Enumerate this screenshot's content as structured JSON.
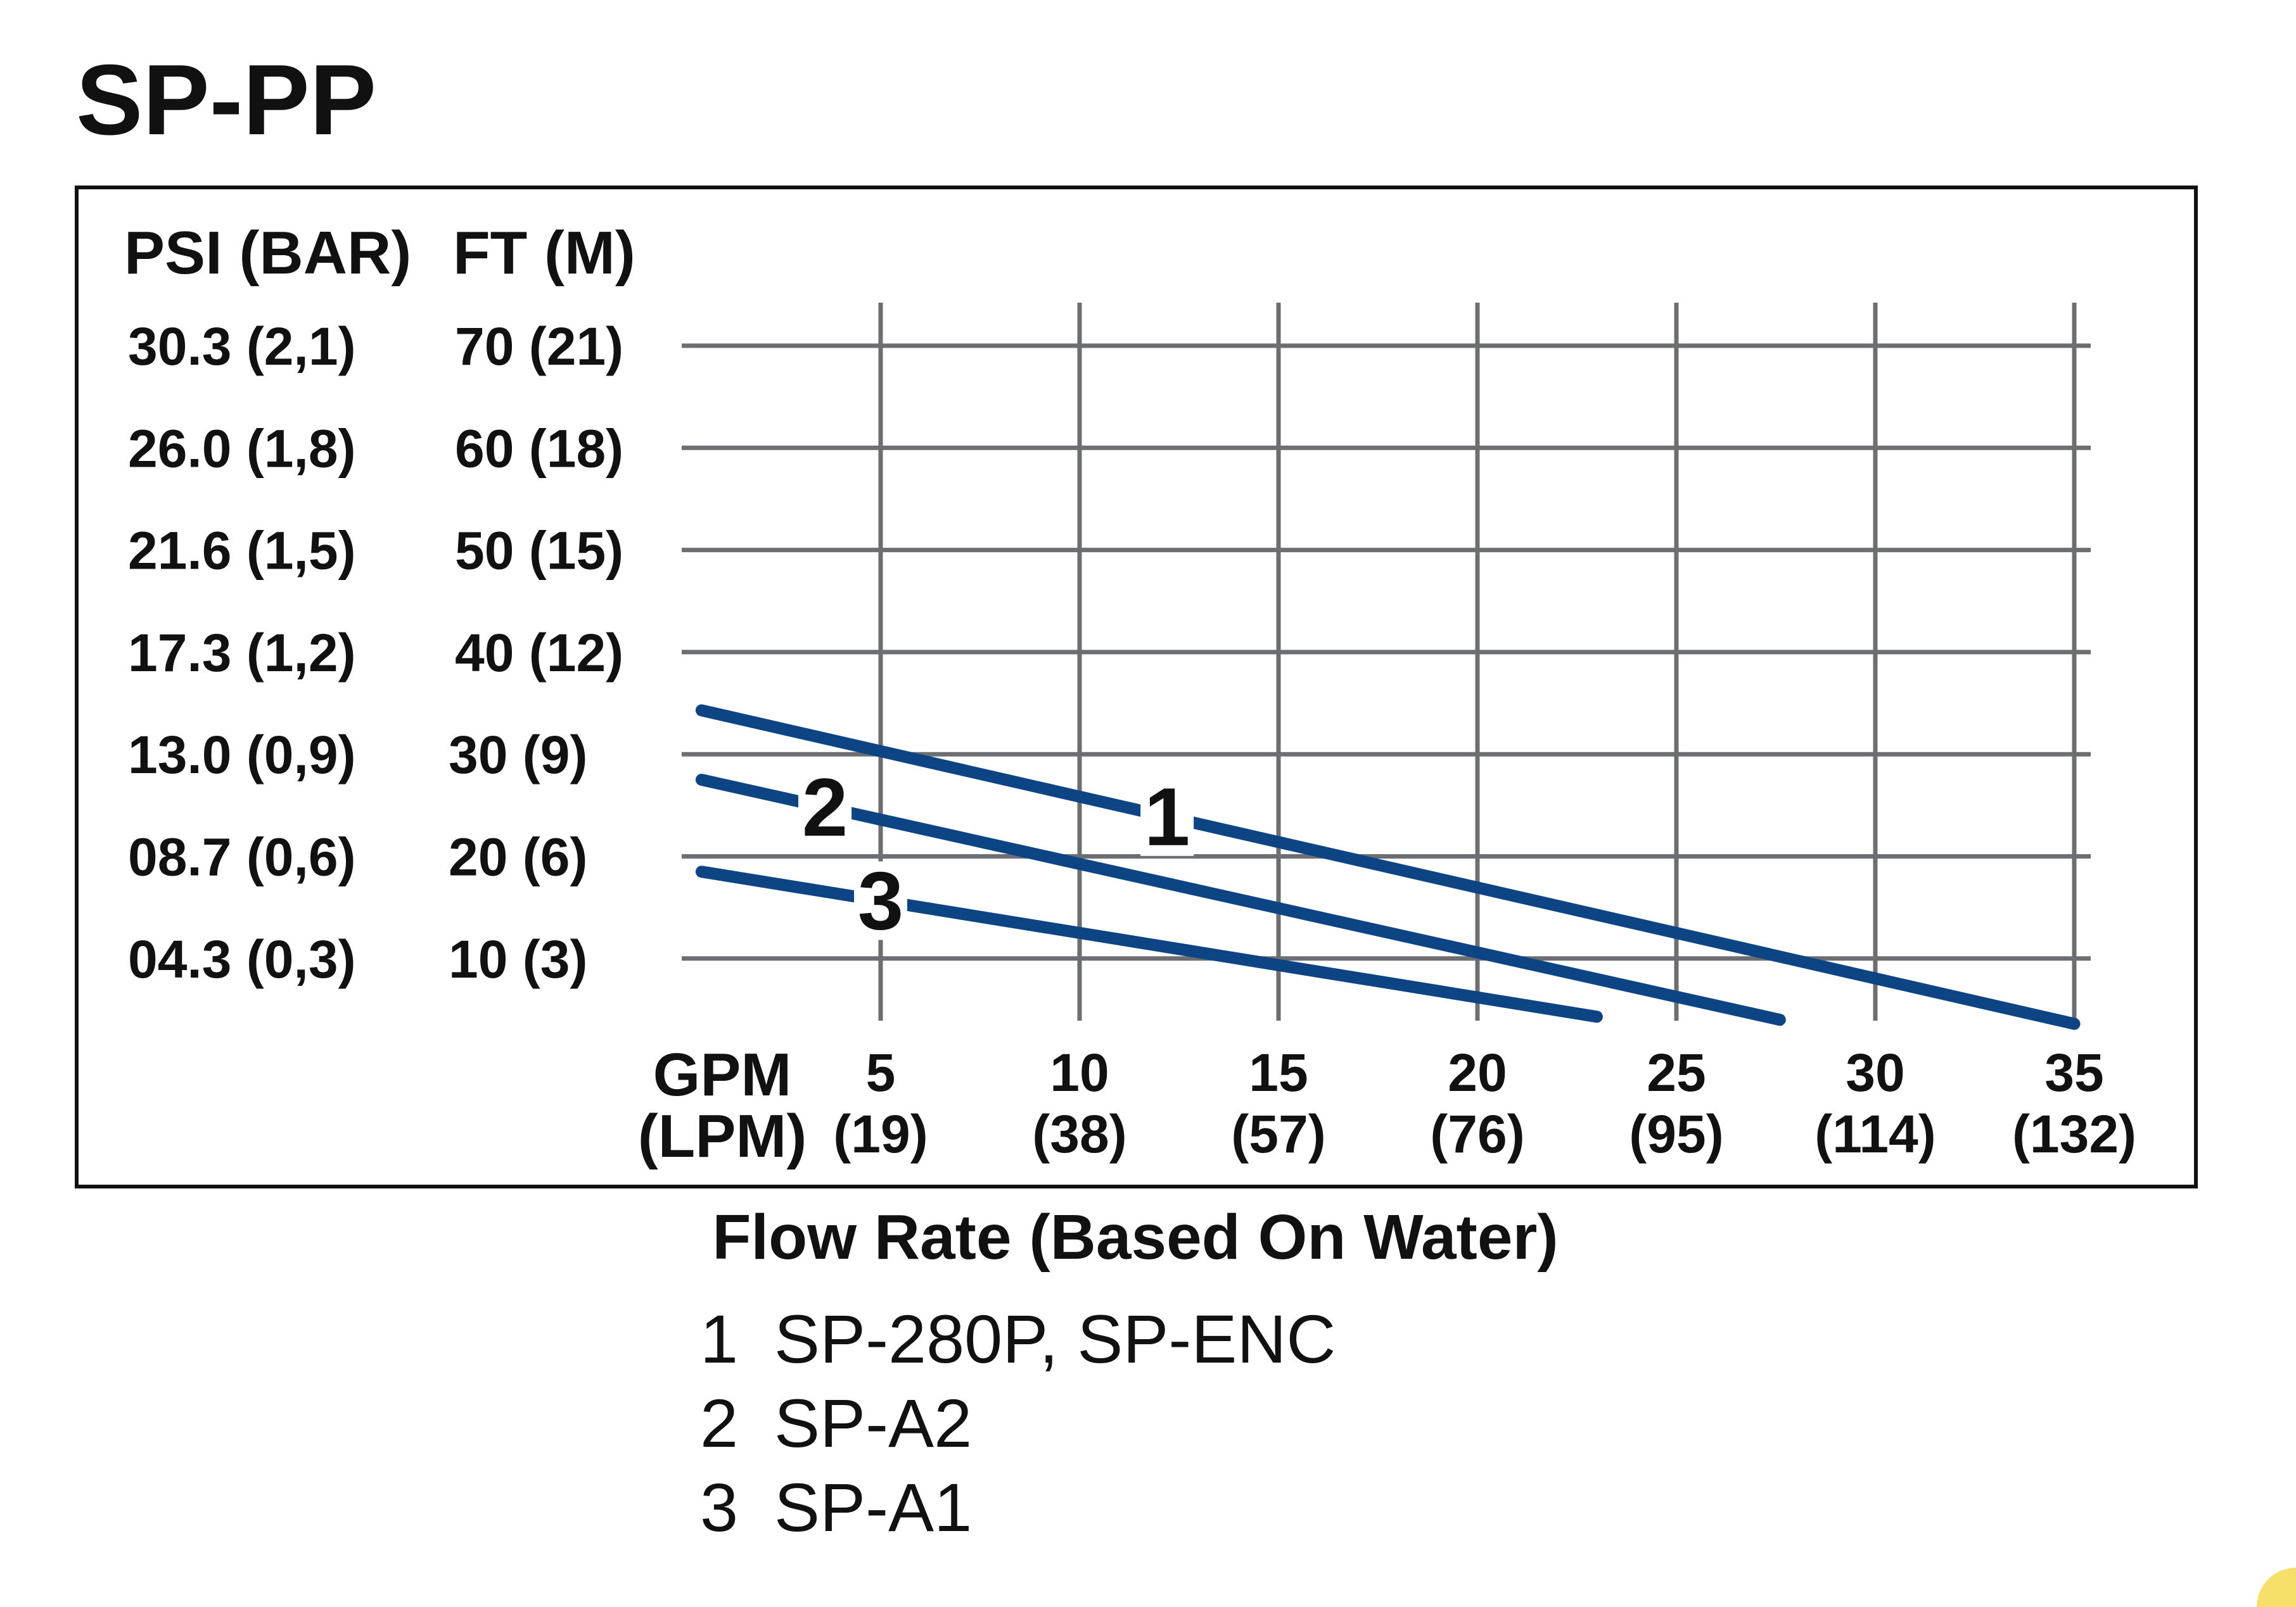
{
  "chart_data": {
    "type": "line",
    "title": "SP-PP",
    "xlabel": "Flow Rate (Based On Water)",
    "x_axis": {
      "header_primary": "GPM",
      "header_secondary": "(LPM)",
      "ticks": [
        {
          "value": 5,
          "label": "5",
          "sub": "(19)"
        },
        {
          "value": 10,
          "label": "10",
          "sub": "(38)"
        },
        {
          "value": 15,
          "label": "15",
          "sub": "(57)"
        },
        {
          "value": 20,
          "label": "20",
          "sub": "(76)"
        },
        {
          "value": 25,
          "label": "25",
          "sub": "(95)"
        },
        {
          "value": 30,
          "label": "30",
          "sub": "(114)"
        },
        {
          "value": 35,
          "label": "35",
          "sub": "(132)"
        }
      ],
      "range": [
        0,
        35
      ]
    },
    "y_axis": {
      "header_psi": "PSI (BAR)",
      "header_ft": "FT (M)",
      "ticks": [
        {
          "value": 70,
          "psi": "30.3 (2,1)",
          "ft": "70 (21)"
        },
        {
          "value": 60,
          "psi": "26.0 (1,8)",
          "ft": "60 (18)"
        },
        {
          "value": 50,
          "psi": "21.6 (1,5)",
          "ft": "50 (15)"
        },
        {
          "value": 40,
          "psi": "17.3 (1,2)",
          "ft": "40 (12)"
        },
        {
          "value": 30,
          "psi": "13.0 (0,9)",
          "ft": "30 (9)"
        },
        {
          "value": 20,
          "psi": "08.7 (0,6)",
          "ft": "20 (6)"
        },
        {
          "value": 10,
          "psi": "04.3 (0,3)",
          "ft": "10 (3)"
        }
      ],
      "range": [
        4,
        74
      ]
    },
    "grid": true,
    "series": [
      {
        "name": "1",
        "label_x": 12.2,
        "x": [
          0.5,
          35
        ],
        "y": [
          34.3,
          3.6
        ]
      },
      {
        "name": "2",
        "label_x": 3.6,
        "x": [
          0.5,
          27.6
        ],
        "y": [
          27.5,
          4.0
        ]
      },
      {
        "name": "3",
        "label_x": 5.0,
        "x": [
          0.5,
          23.0
        ],
        "y": [
          18.5,
          4.3
        ]
      }
    ],
    "legend": [
      {
        "num": "1",
        "text": "SP-280P, SP-ENC"
      },
      {
        "num": "2",
        "text": "SP-A2"
      },
      {
        "num": "3",
        "text": "SP-A1"
      }
    ],
    "colors": {
      "line": "#0d4584",
      "grid": "#6d6e71",
      "frame": "#111111",
      "text": "#111111",
      "accent": "#f7e06a"
    }
  }
}
